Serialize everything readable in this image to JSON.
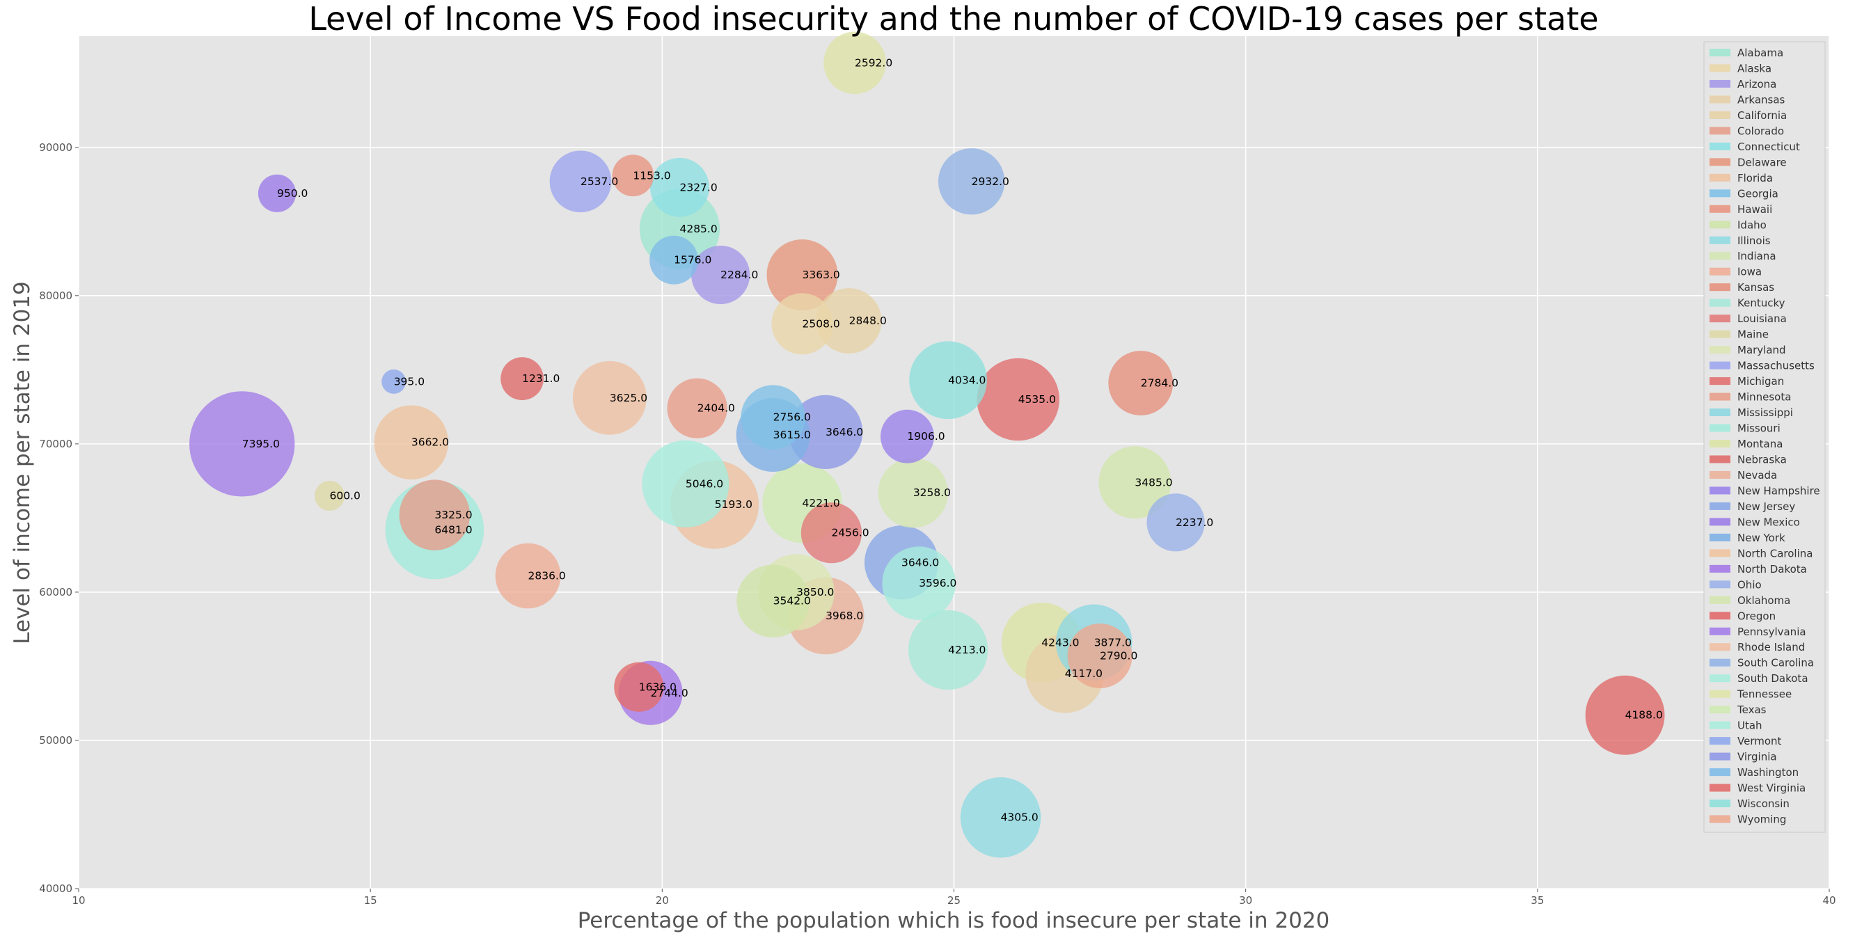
{
  "chart_data": {
    "type": "scatter",
    "title": "Level of Income VS Food insecurity and the number of COVID-19 cases per state",
    "xlabel": "Percentage of the population which is food insecure per state in 2020",
    "ylabel": "Level of income per state in 2019",
    "xlim": [
      10,
      40
    ],
    "ylim": [
      40000,
      97500
    ],
    "xticks": [
      10,
      15,
      20,
      25,
      30,
      35,
      40
    ],
    "yticks": [
      40000,
      50000,
      60000,
      70000,
      80000,
      90000
    ],
    "grid": true,
    "legend_position": "right",
    "size_encodes": "COVID-19 cases",
    "series": [
      {
        "name": "Alabama",
        "color": "#9fe6d0",
        "x": 20.3,
        "y": 84500,
        "value": 4285.0
      },
      {
        "name": "Alaska",
        "color": "#ead6a9",
        "x": 22.4,
        "y": 78100,
        "value": 2508.0
      },
      {
        "name": "Arizona",
        "color": "#a599e8",
        "x": 21.0,
        "y": 81400,
        "value": 2284.0
      },
      {
        "name": "Arkansas",
        "color": "#e6cfa8",
        "x": 26.9,
        "y": 54500,
        "value": 4117.0
      },
      {
        "name": "California",
        "color": "#e6d2a6",
        "x": 23.2,
        "y": 78300,
        "value": 2848.0
      },
      {
        "name": "Colorado",
        "color": "#e59e8c",
        "x": 16.1,
        "y": 65200,
        "value": 3325.0
      },
      {
        "name": "Connecticut",
        "color": "#8ee0e3",
        "x": 20.3,
        "y": 87300,
        "value": 2327.0
      },
      {
        "name": "Delaware",
        "color": "#e6987e",
        "x": 22.4,
        "y": 81400,
        "value": 3363.0
      },
      {
        "name": "Florida",
        "color": "#eec2a1",
        "x": 20.9,
        "y": 65900,
        "value": 5193.0
      },
      {
        "name": "Georgia",
        "color": "#80c0e6",
        "x": 21.9,
        "y": 71800,
        "value": 2756.0
      },
      {
        "name": "Hawaii",
        "color": "#e89682",
        "x": 19.5,
        "y": 88100,
        "value": 1153.0
      },
      {
        "name": "Idaho",
        "color": "#cfe3a8",
        "x": 21.9,
        "y": 59400,
        "value": 3542.0
      },
      {
        "name": "Illinois",
        "color": "#90dbe2",
        "x": 25.8,
        "y": 44800,
        "value": 4305.0
      },
      {
        "name": "Indiana",
        "color": "#d3e6b3",
        "x": 24.3,
        "y": 66700,
        "value": 3258.0
      },
      {
        "name": "Iowa",
        "color": "#eeae97",
        "x": 17.7,
        "y": 61100,
        "value": 2836.0
      },
      {
        "name": "Kansas",
        "color": "#e6917e",
        "x": 28.2,
        "y": 74100,
        "value": 2784.0
      },
      {
        "name": "Kentucky",
        "color": "#a6e8d8",
        "x": 24.9,
        "y": 56100,
        "value": 4213.0
      },
      {
        "name": "Louisiana",
        "color": "#e27b7b",
        "x": 22.9,
        "y": 64000,
        "value": 2456.0
      },
      {
        "name": "Maine",
        "color": "#ddd8a6",
        "x": 14.3,
        "y": 66500,
        "value": 600.0
      },
      {
        "name": "Maryland",
        "color": "#dbe6b3",
        "x": 22.3,
        "y": 60000,
        "value": 3850.0
      },
      {
        "name": "Massachusetts",
        "color": "#9fa6ef",
        "x": 18.6,
        "y": 87700,
        "value": 2537.0
      },
      {
        "name": "Michigan",
        "color": "#e27171",
        "x": 26.1,
        "y": 73000,
        "value": 4535.0
      },
      {
        "name": "Minnesota",
        "color": "#e89e8b",
        "x": 20.6,
        "y": 72400,
        "value": 2404.0
      },
      {
        "name": "Mississippi",
        "color": "#8ed7e2",
        "x": 27.4,
        "y": 56600,
        "value": 3877.0
      },
      {
        "name": "Missouri",
        "color": "#a3eadb",
        "x": 16.1,
        "y": 64200,
        "value": 6481.0
      },
      {
        "name": "Montana",
        "color": "#dce3a4",
        "x": 26.5,
        "y": 56600,
        "value": 4243.0
      },
      {
        "name": "Nebraska",
        "color": "#e06c6c",
        "x": 17.6,
        "y": 74400,
        "value": 1231.0
      },
      {
        "name": "Nevada",
        "color": "#eab19b",
        "x": 22.8,
        "y": 58400,
        "value": 3968.0
      },
      {
        "name": "New Hampshire",
        "color": "#9b83eb",
        "x": 24.2,
        "y": 70500,
        "value": 1906.0
      },
      {
        "name": "New Jersey",
        "color": "#8ba9e6",
        "x": 24.1,
        "y": 62000,
        "value": 3646.0
      },
      {
        "name": "New Mexico",
        "color": "#9c7de8",
        "x": 13.4,
        "y": 86900,
        "value": 950.0
      },
      {
        "name": "New York",
        "color": "#80b0e6",
        "x": 21.9,
        "y": 70600,
        "value": 3615.0
      },
      {
        "name": "North Carolina",
        "color": "#eec39f",
        "x": 15.7,
        "y": 70100,
        "value": 3662.0
      },
      {
        "name": "North Dakota",
        "color": "#a579e8",
        "x": 19.8,
        "y": 53200,
        "value": 2744.0
      },
      {
        "name": "Ohio",
        "color": "#9bb3e8",
        "x": 28.8,
        "y": 64700,
        "value": 2237.0
      },
      {
        "name": "Oklahoma",
        "color": "#d3e6ae",
        "x": 28.1,
        "y": 67400,
        "value": 3485.0
      },
      {
        "name": "Oregon",
        "color": "#e06a6a",
        "x": 36.5,
        "y": 51700,
        "value": 4188.0
      },
      {
        "name": "Pennsylvania",
        "color": "#a47ee9",
        "x": 12.8,
        "y": 70000,
        "value": 7395.0
      },
      {
        "name": "Rhode Island",
        "color": "#efc0a3",
        "x": 19.1,
        "y": 73100,
        "value": 3625.0
      },
      {
        "name": "South Carolina",
        "color": "#93b4e5",
        "x": 25.3,
        "y": 87700,
        "value": 2932.0
      },
      {
        "name": "South Dakota",
        "color": "#a8ecdd",
        "x": 20.4,
        "y": 67300,
        "value": 5046.0
      },
      {
        "name": "Tennessee",
        "color": "#dfe3a9",
        "x": 23.3,
        "y": 95700,
        "value": 2592.0
      },
      {
        "name": "Texas",
        "color": "#cfeab1",
        "x": 22.4,
        "y": 66000,
        "value": 4221.0
      },
      {
        "name": "Utah",
        "color": "#a8ecdc",
        "x": 24.4,
        "y": 60600,
        "value": 3596.0
      },
      {
        "name": "Vermont",
        "color": "#8fa9ec",
        "x": 15.4,
        "y": 74200,
        "value": 395.0
      },
      {
        "name": "Virginia",
        "color": "#8f98e6",
        "x": 22.8,
        "y": 70800,
        "value": 3646.0
      },
      {
        "name": "Washington",
        "color": "#80bbe8",
        "x": 20.2,
        "y": 82400,
        "value": 1576.0
      },
      {
        "name": "West Virginia",
        "color": "#e26d6d",
        "x": 19.6,
        "y": 53600,
        "value": 1636.0
      },
      {
        "name": "Wisconsin",
        "color": "#8ee0dc",
        "x": 24.9,
        "y": 74300,
        "value": 4034.0
      },
      {
        "name": "Wyoming",
        "color": "#eca88f",
        "x": 27.5,
        "y": 55700,
        "value": 2790.0
      }
    ]
  }
}
